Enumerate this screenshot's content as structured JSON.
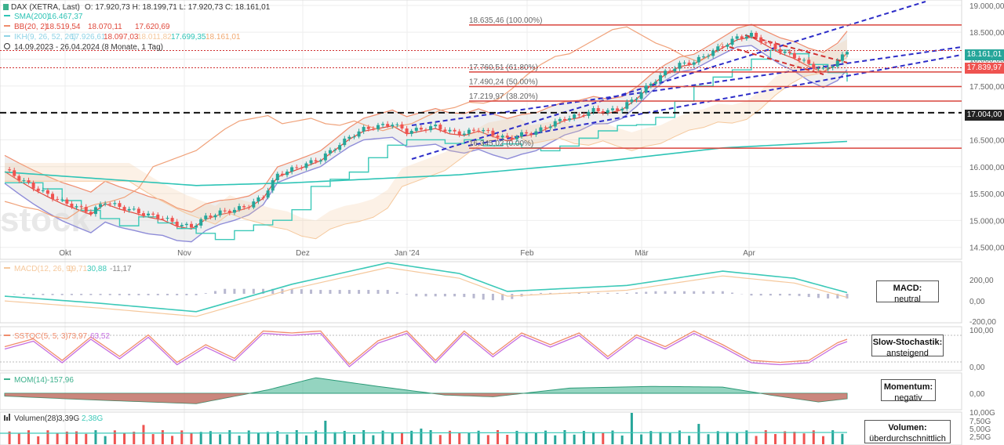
{
  "legend": {
    "title": "DAX (XETRA, Last)",
    "ohlc": "O: 17.920,73  H: 18.199,71  L: 17.920,73  C: 18.161,01",
    "sma": "SMA(200)",
    "sma_val": "16.467,37",
    "bb": "BB(20, 2)",
    "bb_vals": [
      "18.519,54",
      "18.070,11",
      "17.620,69"
    ],
    "ikh": "IKH(9, 26, 52, 26)",
    "ikh_vals": [
      "17.926,61",
      "18.097,03",
      "18.011,82",
      "17.699,35",
      "18.161,01"
    ],
    "range": "14.09.2023 - 26.04.2024  (8 Monate, 1 Tag)"
  },
  "colors": {
    "up": "#26a69a",
    "down": "#ef5350",
    "sma": "#2ec4b6",
    "bb": "#f08c6c",
    "bb_mid": "#e0493c",
    "fib": "#d9453d",
    "trend": "#2d2dc8",
    "ikh_blue": "#8e8cd8",
    "ikh_orange": "#f5c89c"
  },
  "fib_levels": [
    {
      "value": 18635.46,
      "label": "18.635,46 (100.00%)"
    },
    {
      "value": 17760.51,
      "label": "17.760,51 (61.80%)"
    },
    {
      "value": 17490.24,
      "label": "17.490,24 (50.00%)"
    },
    {
      "value": 17219.97,
      "label": "17.219,97 (38.20%)"
    },
    {
      "value": 16345.02,
      "label": "16.345,02 (0.00%)"
    }
  ],
  "price_tags": {
    "last": "18.161,01",
    "level": "17.004,00",
    "prev": "17.839,97"
  },
  "x_labels": [
    "Okt",
    "Nov",
    "Dez",
    "Jan '24",
    "Feb",
    "Mär",
    "Apr"
  ],
  "y_labels": [
    "19.000,00",
    "18.500,00",
    "18.000,00",
    "17.500,00",
    "17.000,00",
    "16.500,00",
    "16.000,00",
    "15.500,00",
    "15.000,00",
    "14.500,00"
  ],
  "macd": {
    "label": "MACD(12, 26, 9)",
    "vals": [
      "19,71",
      "30,88",
      "-11,17"
    ],
    "axis": [
      "200,00",
      "0,00",
      "-200,00"
    ],
    "box": [
      "MACD:",
      "neutral"
    ]
  },
  "sstoch": {
    "label": "SSTOC(5, 5, 3)",
    "vals": [
      "73,97",
      "63,52"
    ],
    "axis": [
      "100,00",
      "0,00"
    ],
    "box": [
      "Slow-Stochastik:",
      "ansteigend"
    ]
  },
  "mom": {
    "label": "MOM(14)",
    "vals": [
      "-157,96"
    ],
    "axis": [
      "0,00"
    ],
    "box": [
      "Momentum:",
      "negativ"
    ]
  },
  "vol": {
    "label": "Volumen(28)",
    "vals": [
      "3,39G",
      "2,38G"
    ],
    "axis": [
      "10,00G",
      "7,50G",
      "5,00G",
      "2,50G"
    ],
    "box": [
      "Volumen:",
      "überdurchschnittlich"
    ]
  },
  "watermark": "stock",
  "chart_data": {
    "type": "candlestick",
    "title": "DAX (XETRA, Last)",
    "x_range": [
      "14.09.2023",
      "26.04.2024"
    ],
    "ylim": [
      14350,
      19100
    ],
    "last_close": 18161.01,
    "horizontal_level": 17004.0,
    "price_path": [
      [
        0,
        15950
      ],
      [
        3,
        15780
      ],
      [
        6,
        15620
      ],
      [
        9,
        15480
      ],
      [
        12,
        15350
      ],
      [
        15,
        15250
      ],
      [
        18,
        15150
      ],
      [
        21,
        15350
      ],
      [
        24,
        15250
      ],
      [
        27,
        15180
      ],
      [
        30,
        15100
      ],
      [
        33,
        15050
      ],
      [
        36,
        14930
      ],
      [
        39,
        14880
      ],
      [
        42,
        15060
      ],
      [
        45,
        15150
      ],
      [
        48,
        15200
      ],
      [
        51,
        15280
      ],
      [
        54,
        15450
      ],
      [
        57,
        15850
      ],
      [
        60,
        15950
      ],
      [
        63,
        16050
      ],
      [
        66,
        16150
      ],
      [
        69,
        16350
      ],
      [
        72,
        16550
      ],
      [
        75,
        16700
      ],
      [
        78,
        16750
      ],
      [
        81,
        16800
      ],
      [
        84,
        16650
      ],
      [
        87,
        16700
      ],
      [
        90,
        16750
      ],
      [
        93,
        16650
      ],
      [
        96,
        16620
      ],
      [
        99,
        16700
      ],
      [
        102,
        16600
      ],
      [
        105,
        16520
      ],
      [
        108,
        16600
      ],
      [
        111,
        16650
      ],
      [
        114,
        16780
      ],
      [
        117,
        16900
      ],
      [
        120,
        16950
      ],
      [
        123,
        17050
      ],
      [
        126,
        17030
      ],
      [
        129,
        17100
      ],
      [
        132,
        17300
      ],
      [
        135,
        17550
      ],
      [
        138,
        17750
      ],
      [
        141,
        17900
      ],
      [
        144,
        17950
      ],
      [
        147,
        18100
      ],
      [
        150,
        18250
      ],
      [
        153,
        18400
      ],
      [
        156,
        18450
      ],
      [
        159,
        18300
      ],
      [
        162,
        18150
      ],
      [
        165,
        18050
      ],
      [
        168,
        17900
      ],
      [
        171,
        17800
      ],
      [
        174,
        17950
      ],
      [
        176,
        18161
      ]
    ],
    "sma200_path": [
      [
        0,
        15900
      ],
      [
        40,
        15650
      ],
      [
        60,
        15700
      ],
      [
        95,
        15850
      ],
      [
        120,
        16050
      ],
      [
        150,
        16350
      ],
      [
        176,
        16470
      ]
    ],
    "macd_path": [
      [
        0,
        -20
      ],
      [
        20,
        -80
      ],
      [
        40,
        -150
      ],
      [
        60,
        80
      ],
      [
        80,
        260
      ],
      [
        95,
        170
      ],
      [
        105,
        20
      ],
      [
        130,
        70
      ],
      [
        150,
        190
      ],
      [
        165,
        130
      ],
      [
        176,
        10
      ]
    ],
    "stoch_path": [
      [
        0,
        55
      ],
      [
        6,
        75
      ],
      [
        12,
        20
      ],
      [
        18,
        80
      ],
      [
        24,
        30
      ],
      [
        30,
        85
      ],
      [
        36,
        15
      ],
      [
        42,
        60
      ],
      [
        48,
        25
      ],
      [
        54,
        95
      ],
      [
        60,
        90
      ],
      [
        66,
        95
      ],
      [
        72,
        10
      ],
      [
        78,
        70
      ],
      [
        84,
        95
      ],
      [
        90,
        20
      ],
      [
        96,
        95
      ],
      [
        102,
        35
      ],
      [
        108,
        90
      ],
      [
        114,
        60
      ],
      [
        120,
        90
      ],
      [
        126,
        30
      ],
      [
        132,
        85
      ],
      [
        138,
        55
      ],
      [
        144,
        95
      ],
      [
        150,
        60
      ],
      [
        156,
        20
      ],
      [
        162,
        15
      ],
      [
        168,
        20
      ],
      [
        174,
        65
      ],
      [
        176,
        74
      ]
    ],
    "mom_path": [
      [
        0,
        -80
      ],
      [
        20,
        -200
      ],
      [
        40,
        -300
      ],
      [
        55,
        100
      ],
      [
        65,
        450
      ],
      [
        78,
        200
      ],
      [
        92,
        -50
      ],
      [
        102,
        -100
      ],
      [
        118,
        150
      ],
      [
        135,
        200
      ],
      [
        150,
        180
      ],
      [
        160,
        -50
      ],
      [
        170,
        -250
      ],
      [
        176,
        -158
      ]
    ],
    "volume_period": 28,
    "volume_last": "3,39G",
    "volume_avg": "2,38G"
  }
}
